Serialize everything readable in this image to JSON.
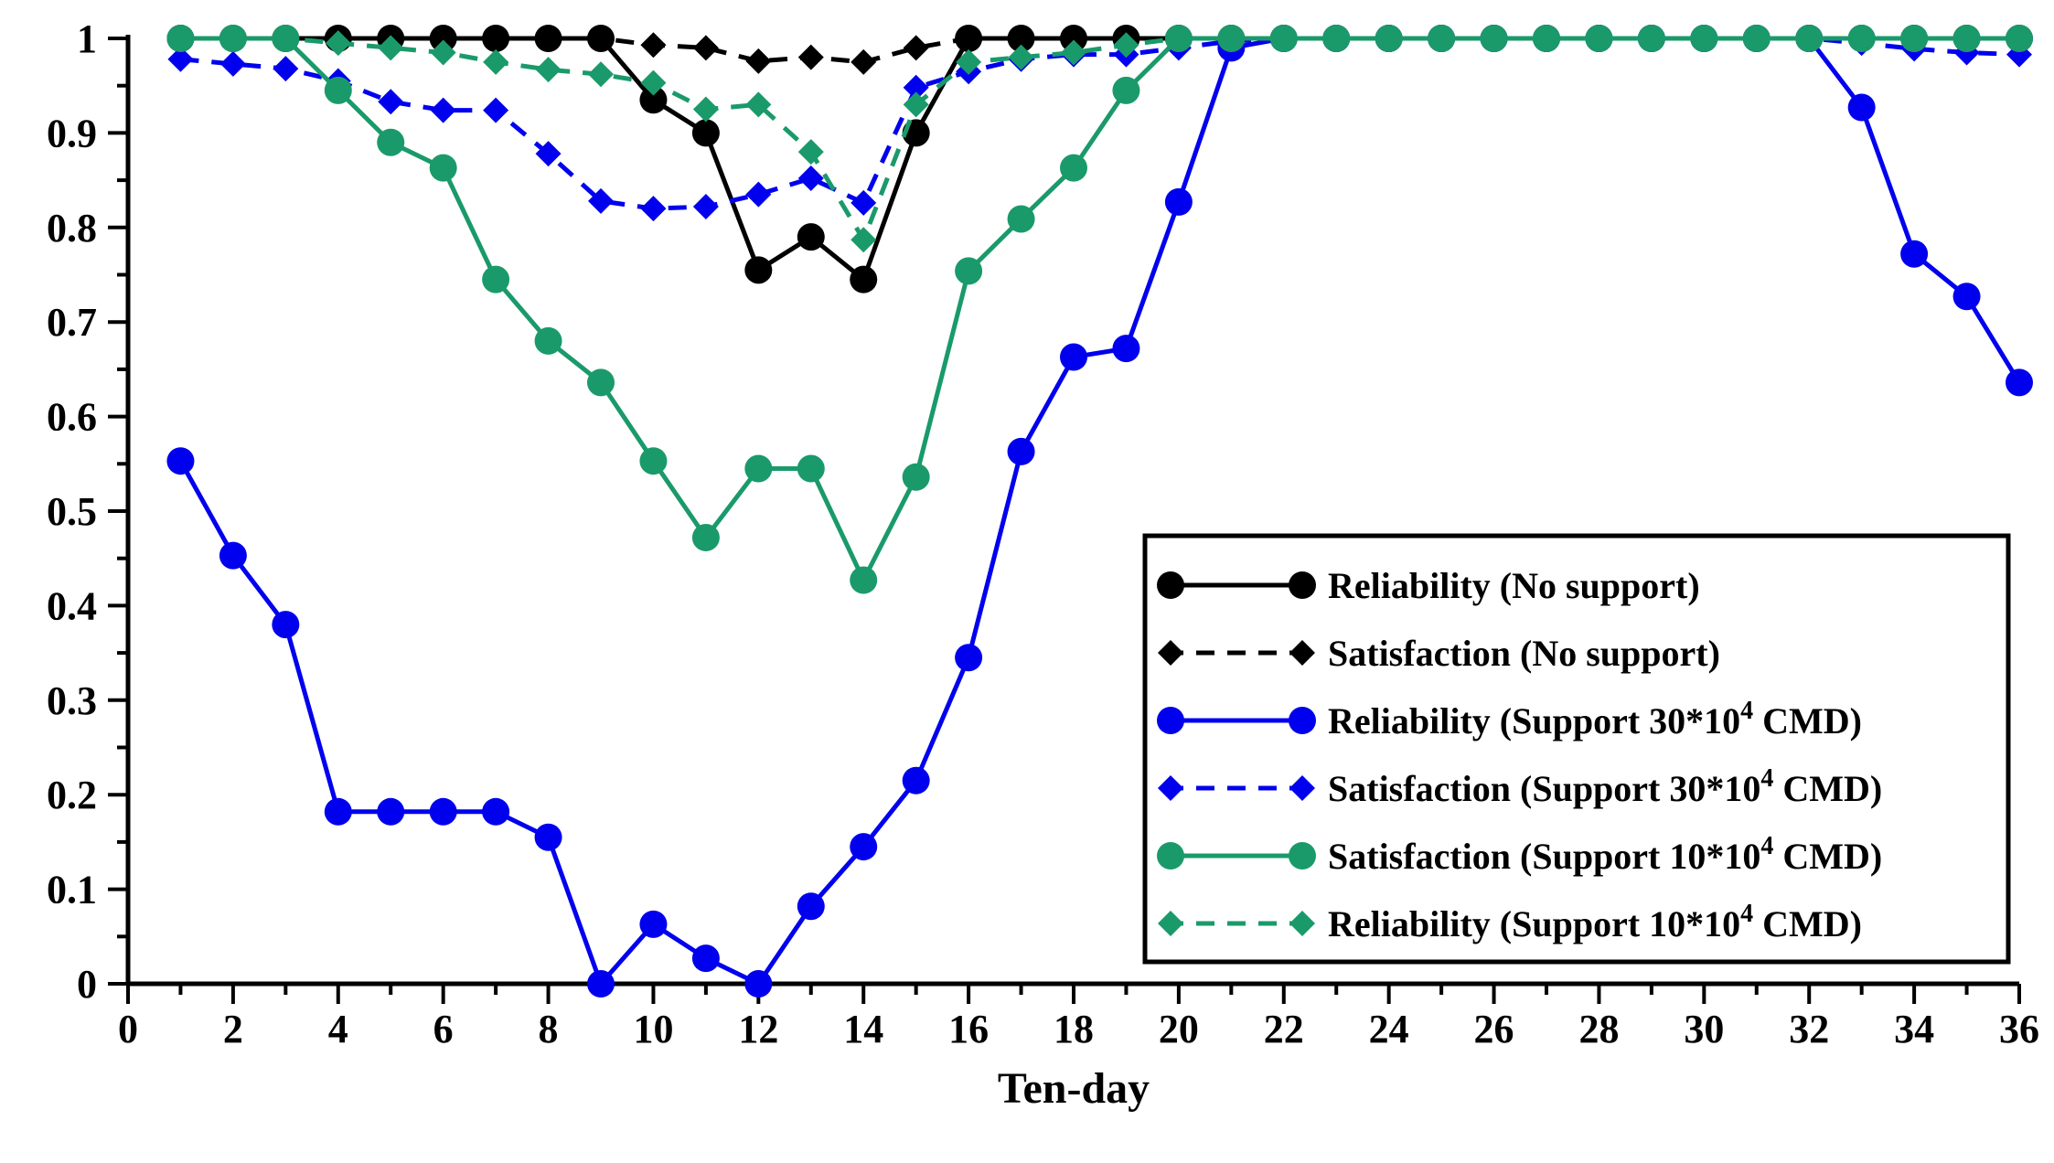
{
  "chart_data": {
    "type": "line",
    "title": "",
    "xlabel": "Ten-day",
    "ylabel": "",
    "xlim": [
      0,
      36
    ],
    "ylim": [
      0,
      1
    ],
    "x_ticks": [
      "0",
      "2",
      "4",
      "6",
      "8",
      "10",
      "12",
      "14",
      "16",
      "18",
      "20",
      "22",
      "24",
      "26",
      "28",
      "30",
      "32",
      "34",
      "36"
    ],
    "y_ticks": [
      "0",
      "0.1",
      "0.2",
      "0.3",
      "0.4",
      "0.5",
      "0.6",
      "0.7",
      "0.8",
      "0.9",
      "1"
    ],
    "grid": false,
    "legend_position": "center-right",
    "x": [
      1,
      2,
      3,
      4,
      5,
      6,
      7,
      8,
      9,
      10,
      11,
      12,
      13,
      14,
      15,
      16,
      17,
      18,
      19,
      20,
      21,
      22,
      23,
      24,
      25,
      26,
      27,
      28,
      29,
      30,
      31,
      32,
      33,
      34,
      35,
      36
    ],
    "series": [
      {
        "name": "Reliability (No support)",
        "legend_main": "Reliability (No support)",
        "legend_sup": "",
        "legend_tail": "",
        "color": "#000000",
        "dash": "solid",
        "marker": "circle",
        "values": [
          1,
          1,
          1,
          1,
          1,
          1,
          1,
          1,
          1,
          0.935,
          0.9,
          0.755,
          0.79,
          0.745,
          0.9,
          1,
          1,
          1,
          1,
          1,
          1,
          1,
          1,
          1,
          1,
          1,
          1,
          1,
          1,
          1,
          1,
          1,
          1,
          1,
          1,
          1
        ]
      },
      {
        "name": "Satisfaction (No support)",
        "legend_main": "Satisfaction (No support)",
        "legend_sup": "",
        "legend_tail": "",
        "color": "#000000",
        "dash": "dashed",
        "marker": "diamond",
        "values": [
          1,
          1,
          1,
          1,
          1,
          1,
          1,
          1,
          1,
          0.993,
          0.99,
          0.976,
          0.98,
          0.975,
          0.99,
          1,
          1,
          1,
          1,
          1,
          1,
          1,
          1,
          1,
          1,
          1,
          1,
          1,
          1,
          1,
          1,
          1,
          1,
          1,
          1,
          1
        ]
      },
      {
        "name": "Reliability (Support 30*10^4 CMD)",
        "legend_main": "Reliability (Support 30*10",
        "legend_sup": "4",
        "legend_tail": " CMD)",
        "color": "#0000ee",
        "dash": "solid",
        "marker": "circle",
        "values": [
          0.553,
          0.453,
          0.38,
          0.182,
          0.182,
          0.182,
          0.182,
          0.155,
          0,
          0.063,
          0.027,
          0,
          0.082,
          0.145,
          0.215,
          0.345,
          0.563,
          0.663,
          0.672,
          0.827,
          0.99,
          1,
          1,
          1,
          1,
          1,
          1,
          1,
          1,
          1,
          1,
          1,
          0.927,
          0.772,
          0.727,
          0.636
        ]
      },
      {
        "name": "Satisfaction (Support 30*10^4 CMD)",
        "legend_main": "Satisfaction (Support 30*10",
        "legend_sup": "4",
        "legend_tail": " CMD)",
        "color": "#0000ee",
        "dash": "dashed",
        "marker": "diamond",
        "values": [
          0.978,
          0.973,
          0.968,
          0.955,
          0.933,
          0.924,
          0.924,
          0.878,
          0.828,
          0.82,
          0.822,
          0.835,
          0.852,
          0.826,
          0.948,
          0.965,
          0.978,
          0.983,
          0.983,
          0.99,
          0.997,
          1,
          1,
          1,
          1,
          1,
          1,
          1,
          1,
          1,
          1,
          1,
          0.995,
          0.989,
          0.985,
          0.983
        ]
      },
      {
        "name": "Satisfaction (Support 10*10^4 CMD)",
        "legend_main": "Satisfaction (Support 10*10",
        "legend_sup": "4",
        "legend_tail": " CMD)",
        "color": "#1a9a6a",
        "dash": "solid",
        "marker": "circle",
        "values": [
          1,
          1,
          1,
          0.945,
          0.89,
          0.863,
          0.745,
          0.68,
          0.636,
          0.553,
          0.472,
          0.545,
          0.545,
          0.427,
          0.536,
          0.754,
          0.809,
          0.863,
          0.945,
          1,
          1,
          1,
          1,
          1,
          1,
          1,
          1,
          1,
          1,
          1,
          1,
          1,
          1,
          1,
          1,
          1
        ]
      },
      {
        "name": "Reliability (Support 10*10^4 CMD)",
        "legend_main": "Reliability (Support 10*10",
        "legend_sup": "4",
        "legend_tail": " CMD)",
        "color": "#1a9a6a",
        "dash": "dashed",
        "marker": "diamond",
        "values": [
          1,
          1,
          1,
          0.995,
          0.99,
          0.985,
          0.975,
          0.967,
          0.962,
          0.953,
          0.925,
          0.93,
          0.88,
          0.787,
          0.93,
          0.975,
          0.98,
          0.985,
          0.993,
          1,
          1,
          1,
          1,
          1,
          1,
          1,
          1,
          1,
          1,
          1,
          1,
          1,
          1,
          1,
          1,
          1
        ]
      }
    ]
  }
}
